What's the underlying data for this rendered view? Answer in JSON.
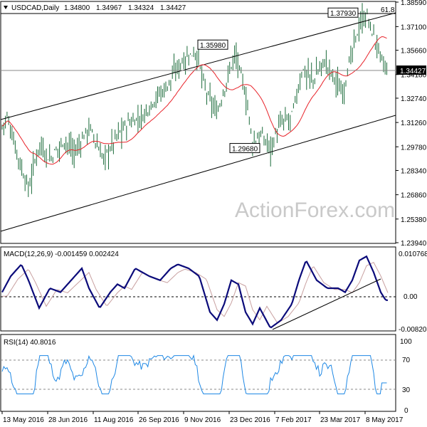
{
  "chart_data": [
    {
      "type": "ohlc",
      "header": {
        "symbol": "USDCAD,Daily",
        "open": "1.34800",
        "high": "1.34967",
        "low": "1.34324",
        "close": "1.34427"
      },
      "price_ticks": [
        "1.38590",
        "1.37100",
        "1.35660",
        "1.34180",
        "1.32740",
        "1.31260",
        "1.29780",
        "1.28340",
        "1.26860",
        "1.25380",
        "1.23940"
      ],
      "current_price": "1.34427",
      "ylim": [
        1.2394,
        1.3859
      ],
      "annotations": [
        {
          "label": "1.37930",
          "value": 1.3793
        },
        {
          "label": "1.35980",
          "value": 1.3598
        },
        {
          "label": "1.29680",
          "value": 1.2968
        }
      ],
      "fib_label": "61.8",
      "watermark": "ActionForex.com",
      "moving_average_color": "#e8232a",
      "price_bar_color": "#1b6b3a",
      "channel_color": "#000000",
      "x_ticks": [
        "13 May 2016",
        "28 Jun 2016",
        "11 Aug 2016",
        "26 Sep 2016",
        "9 Nov 2016",
        "23 Dec 2016",
        "7 Feb 2017",
        "23 Mar 2017",
        "8 May 2017"
      ],
      "grid": false
    },
    {
      "type": "line",
      "header": "MACD(12,26,9) -0.001459 0.002424",
      "y_ticks": [
        "0.010768",
        "0.00",
        "-0.008203"
      ],
      "ylim": [
        -0.008203,
        0.010768
      ],
      "macd_color": "#0b0b7a",
      "signal_color": "#c8a0a0",
      "zero_line": 0
    },
    {
      "type": "line",
      "header": "RSI(14) 40.8016",
      "y_ticks": [
        "100",
        "70",
        "30",
        "0"
      ],
      "ylim": [
        0,
        100
      ],
      "levels": [
        70,
        30
      ],
      "rsi_color": "#1e88e5",
      "last_value": 40.8016
    }
  ]
}
